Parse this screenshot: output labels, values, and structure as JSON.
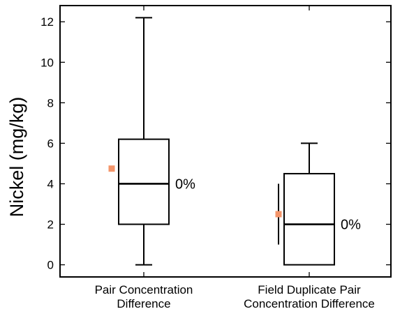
{
  "chart_data": {
    "type": "box",
    "ylabel": "Nickel (mg/kg)",
    "ylim": [
      -0.6,
      12.8
    ],
    "yticks": [
      0,
      2,
      4,
      6,
      8,
      10,
      12
    ],
    "grid": false,
    "categories": [
      [
        "Pair Concentration",
        "Difference"
      ],
      [
        "Field Duplicate Pair",
        "Concentration Difference"
      ]
    ],
    "boxes": [
      {
        "min": 0,
        "q1": 2,
        "median": 4,
        "q3": 6.2,
        "max": 12.2,
        "mean": 4.75,
        "ci": null,
        "percent_label": "0%"
      },
      {
        "min": 0,
        "q1": 0,
        "median": 2,
        "q3": 4.5,
        "max": 6.0,
        "mean": 2.5,
        "ci": [
          1.0,
          4.0
        ],
        "percent_label": "0%"
      }
    ],
    "colors": {
      "mean_marker": "#f4956a",
      "box_stroke": "#000000"
    }
  }
}
